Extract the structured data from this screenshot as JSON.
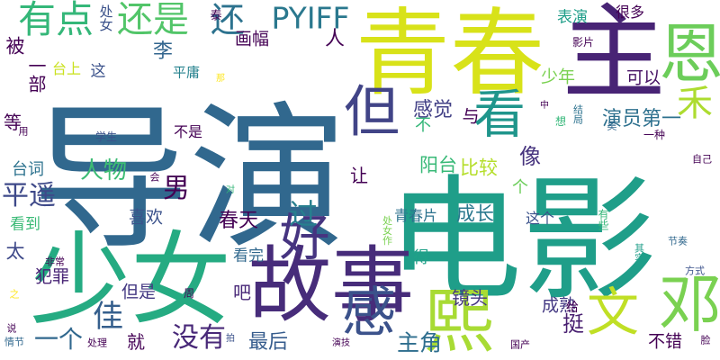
{
  "cloud": {
    "words": [
      {
        "text": "导演",
        "color": "#31688e",
        "vertical": false
      },
      {
        "text": "电影",
        "color": "#1f9e89",
        "vertical": false
      },
      {
        "text": "青春",
        "color": "#d8e219",
        "vertical": false
      },
      {
        "text": "少女",
        "color": "#25ab82",
        "vertical": false
      },
      {
        "text": "故事",
        "color": "#472c7a",
        "vertical": false
      },
      {
        "text": "主",
        "color": "#482475",
        "vertical": false
      },
      {
        "text": "恩",
        "color": "#6ccd5a",
        "vertical": false
      },
      {
        "text": "熙",
        "color": "#a8db34",
        "vertical": false
      },
      {
        "text": "感",
        "color": "#3b528b",
        "vertical": false
      },
      {
        "text": "邓",
        "color": "#7ad151",
        "vertical": false
      },
      {
        "text": "文",
        "color": "#c0df25",
        "vertical": true
      },
      {
        "text": "好",
        "color": "#463480",
        "vertical": true
      },
      {
        "text": "但",
        "color": "#414487",
        "vertical": true
      },
      {
        "text": "看",
        "color": "#1f958b",
        "vertical": true
      },
      {
        "text": "禾",
        "color": "#addc30",
        "vertical": false
      },
      {
        "text": "有点",
        "color": "#35b779",
        "vertical": false
      },
      {
        "text": "还是",
        "color": "#52c569",
        "vertical": false
      },
      {
        "text": "还",
        "color": "#2c728e",
        "vertical": false
      },
      {
        "text": "PYIFF",
        "color": "#2a788e",
        "vertical": false
      },
      {
        "text": "平遥",
        "color": "#3e4989",
        "vertical": false
      },
      {
        "text": "人物",
        "color": "#3dbc74",
        "vertical": false
      },
      {
        "text": "男",
        "color": "#440154",
        "vertical": false
      },
      {
        "text": "过",
        "color": "#277f8e",
        "vertical": false
      },
      {
        "text": "佳",
        "color": "#355f8d",
        "vertical": false
      },
      {
        "text": "感觉",
        "color": "#424086",
        "vertical": false
      },
      {
        "text": "与",
        "color": "#440154",
        "vertical": false
      },
      {
        "text": "演员第一",
        "color": "#2d708e",
        "vertical": false
      },
      {
        "text": "少年",
        "color": "#7ad151",
        "vertical": false
      },
      {
        "text": "可以",
        "color": "#471365",
        "vertical": false
      },
      {
        "text": "阳台",
        "color": "#38b977",
        "vertical": false
      },
      {
        "text": "比较",
        "color": "#b5de2b",
        "vertical": false
      },
      {
        "text": "成长",
        "color": "#2a788e",
        "vertical": false
      },
      {
        "text": "像",
        "color": "#46337e",
        "vertical": false
      },
      {
        "text": "让",
        "color": "#440154",
        "vertical": false
      },
      {
        "text": "喜欢",
        "color": "#3b528b",
        "vertical": false
      },
      {
        "text": "春天",
        "color": "#440154",
        "vertical": false
      },
      {
        "text": "没有",
        "color": "#482878",
        "vertical": false
      },
      {
        "text": "一个",
        "color": "#31688e",
        "vertical": false
      },
      {
        "text": "主角",
        "color": "#2e6e8e",
        "vertical": false
      },
      {
        "text": "挺",
        "color": "#481f70",
        "vertical": false
      },
      {
        "text": "就",
        "color": "#440154",
        "vertical": false
      },
      {
        "text": "最后",
        "color": "#365c8d",
        "vertical": false
      },
      {
        "text": "镜头",
        "color": "#453781",
        "vertical": false
      },
      {
        "text": "成熟",
        "color": "#443983",
        "vertical": false
      },
      {
        "text": "不错",
        "color": "#440154",
        "vertical": false
      },
      {
        "text": "李",
        "color": "#32658e",
        "vertical": false
      },
      {
        "text": "被",
        "color": "#440154",
        "vertical": false
      },
      {
        "text": "等",
        "color": "#440154",
        "vertical": false
      },
      {
        "text": "一部",
        "color": "#440154",
        "vertical": true
      },
      {
        "text": "人",
        "color": "#440154",
        "vertical": false
      },
      {
        "text": "画幅",
        "color": "#440154",
        "vertical": false
      },
      {
        "text": "表演",
        "color": "#1f9e89",
        "vertical": false
      },
      {
        "text": "很多",
        "color": "#440154",
        "vertical": false
      },
      {
        "text": "平庸",
        "color": "#26828e",
        "vertical": false
      },
      {
        "text": "这",
        "color": "#3b528b",
        "vertical": false
      },
      {
        "text": "台上",
        "color": "#cae11f",
        "vertical": false
      },
      {
        "text": "台词",
        "color": "#2c728e",
        "vertical": false
      },
      {
        "text": "太",
        "color": "#3e4989",
        "vertical": false
      },
      {
        "text": "看到",
        "color": "#3aba76",
        "vertical": false
      },
      {
        "text": "犯罪",
        "color": "#482475",
        "vertical": false
      },
      {
        "text": "但是",
        "color": "#443983",
        "vertical": false
      },
      {
        "text": "吧",
        "color": "#482878",
        "vertical": false
      },
      {
        "text": "看完",
        "color": "#31688e",
        "vertical": false
      },
      {
        "text": "得",
        "color": "#1fa188",
        "vertical": false
      },
      {
        "text": "这个",
        "color": "#3b528b",
        "vertical": false
      },
      {
        "text": "青春片",
        "color": "#2c728e",
        "vertical": false
      },
      {
        "text": "不是",
        "color": "#440154",
        "vertical": false
      },
      {
        "text": "给",
        "color": "#440154",
        "vertical": false
      },
      {
        "text": "个",
        "color": "#6ccd5a",
        "vertical": false
      },
      {
        "text": "处女",
        "color": "#3b528b",
        "vertical": true
      },
      {
        "text": "泰",
        "color": "#440154",
        "vertical": false
      },
      {
        "text": "影片",
        "color": "#440154",
        "vertical": false
      },
      {
        "text": "不",
        "color": "#35b779",
        "vertical": false
      },
      {
        "text": "自己",
        "color": "#440154",
        "vertical": false
      },
      {
        "text": "学生",
        "color": "#3b528b",
        "vertical": false
      },
      {
        "text": "一种",
        "color": "#440154",
        "vertical": false
      },
      {
        "text": "用",
        "color": "#440154",
        "vertical": false
      },
      {
        "text": "想",
        "color": "#35b779",
        "vertical": false
      },
      {
        "text": "结局",
        "color": "#2c728e",
        "vertical": true
      },
      {
        "text": "昊",
        "color": "#31688e",
        "vertical": false
      },
      {
        "text": "中",
        "color": "#440154",
        "vertical": false
      },
      {
        "text": "那",
        "color": "#fde725",
        "vertical": false
      },
      {
        "text": "会",
        "color": "#440154",
        "vertical": false
      },
      {
        "text": "对",
        "color": "#35b779",
        "vertical": false
      },
      {
        "text": "有些",
        "color": "#35b779",
        "vertical": true
      },
      {
        "text": "处女作",
        "color": "#7ad151",
        "vertical": true
      },
      {
        "text": "节奏",
        "color": "#31688e",
        "vertical": false
      },
      {
        "text": "其实",
        "color": "#1f9e89",
        "vertical": true
      },
      {
        "text": "方式",
        "color": "#3b528b",
        "vertical": false
      },
      {
        "text": "非常",
        "color": "#440154",
        "vertical": false
      },
      {
        "text": "周",
        "color": "#440154",
        "vertical": false
      },
      {
        "text": "之",
        "color": "#fde725",
        "vertical": false
      },
      {
        "text": "说",
        "color": "#440154",
        "vertical": false
      },
      {
        "text": "情节",
        "color": "#31688e",
        "vertical": false
      },
      {
        "text": "处理",
        "color": "#440154",
        "vertical": false
      },
      {
        "text": "拍",
        "color": "#3b528b",
        "vertical": false
      },
      {
        "text": "演技",
        "color": "#440154",
        "vertical": false
      },
      {
        "text": "国产",
        "color": "#440154",
        "vertical": false
      },
      {
        "text": "脸",
        "color": "#440154",
        "vertical": false
      }
    ]
  }
}
